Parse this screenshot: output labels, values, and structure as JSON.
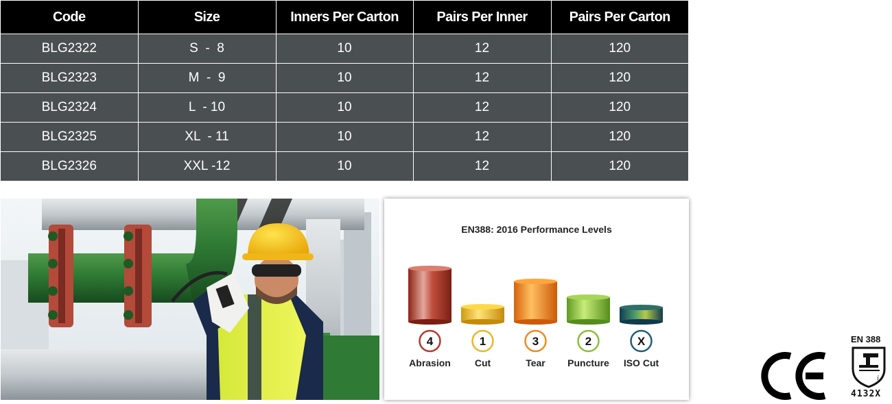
{
  "table": {
    "headers": [
      "Code",
      "Size",
      "Inners Per Carton",
      "Pairs Per Inner",
      "Pairs Per Carton"
    ],
    "rows": [
      [
        "BLG2322",
        "S  -  8",
        "10",
        "12",
        "120"
      ],
      [
        "BLG2323",
        "M  -  9",
        "10",
        "12",
        "120"
      ],
      [
        "BLG2324",
        "L  - 10",
        "10",
        "12",
        "120"
      ],
      [
        "BLG2325",
        "XL  - 11",
        "10",
        "12",
        "120"
      ],
      [
        "BLG2326",
        "XXL -12",
        "10",
        "12",
        "120"
      ]
    ]
  },
  "performance": {
    "title": "EN388: 2016 Performance Levels",
    "items": [
      {
        "level": "4",
        "label": "Abrasion",
        "color": "#b5392c"
      },
      {
        "level": "1",
        "label": "Cut",
        "color": "#e9b92a"
      },
      {
        "level": "3",
        "label": "Tear",
        "color": "#ee8a1f"
      },
      {
        "level": "2",
        "label": "Puncture",
        "color": "#8cbf3a"
      },
      {
        "level": "X",
        "label": "ISO Cut",
        "color": "#1f5e7a"
      }
    ]
  },
  "certification": {
    "standard": "EN 388",
    "code": "4132X"
  },
  "colors": {
    "header_bg": "#000000",
    "row_bg": "#4a4f52"
  }
}
